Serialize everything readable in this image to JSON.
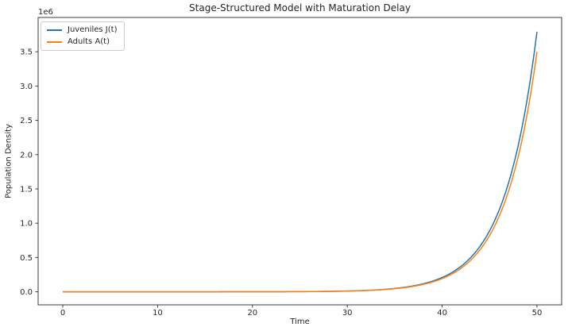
{
  "figure": {
    "background": "#ffffff",
    "frame_color": "#3b3b3b",
    "text_color": "#262626"
  },
  "chart_data": {
    "type": "line",
    "title": "Stage-Structured Model with Maturation Delay",
    "xlabel": "Time",
    "ylabel": "Population Density",
    "offset_text": "1e6",
    "grid": false,
    "legend_position": "upper left",
    "xlim": [
      -2.6,
      52.6
    ],
    "ylim": [
      -190000,
      4000000
    ],
    "xticks": [
      0,
      10,
      20,
      30,
      40,
      50
    ],
    "xtick_labels": [
      "0",
      "10",
      "20",
      "30",
      "40",
      "50"
    ],
    "yticks": [
      0,
      500000,
      1000000,
      1500000,
      2000000,
      2500000,
      3000000,
      3500000
    ],
    "ytick_labels": [
      "0.0",
      "0.5",
      "1.0",
      "1.5",
      "2.0",
      "2.5",
      "3.0",
      "3.5"
    ],
    "x": [
      0,
      2,
      4,
      6,
      8,
      10,
      12,
      14,
      16,
      18,
      20,
      22,
      24,
      26,
      28,
      30,
      32,
      34,
      36,
      38,
      40,
      42,
      44,
      46,
      48,
      50
    ],
    "series": [
      {
        "id": "juveniles",
        "name": "Juveniles J(t)",
        "color": "#1f77b4",
        "values": [
          1.9,
          3.4,
          6.1,
          10.9,
          19.4,
          34.7,
          62,
          111,
          198,
          353,
          631,
          1130,
          2010,
          3590,
          6420,
          11500,
          20500,
          36600,
          65300,
          116700,
          208400,
          372200,
          664700,
          1187000,
          2120000,
          3790000
        ]
      },
      {
        "id": "adults",
        "name": "Adults A(t)",
        "color": "#ff7f0e",
        "values": [
          1.8,
          3.2,
          5.6,
          10.1,
          18,
          32.1,
          57.3,
          102,
          183,
          326,
          583,
          1040,
          1860,
          3320,
          5930,
          10600,
          18900,
          33800,
          60400,
          107800,
          192600,
          343900,
          614200,
          1097000,
          1959000,
          3500000
        ]
      }
    ]
  }
}
